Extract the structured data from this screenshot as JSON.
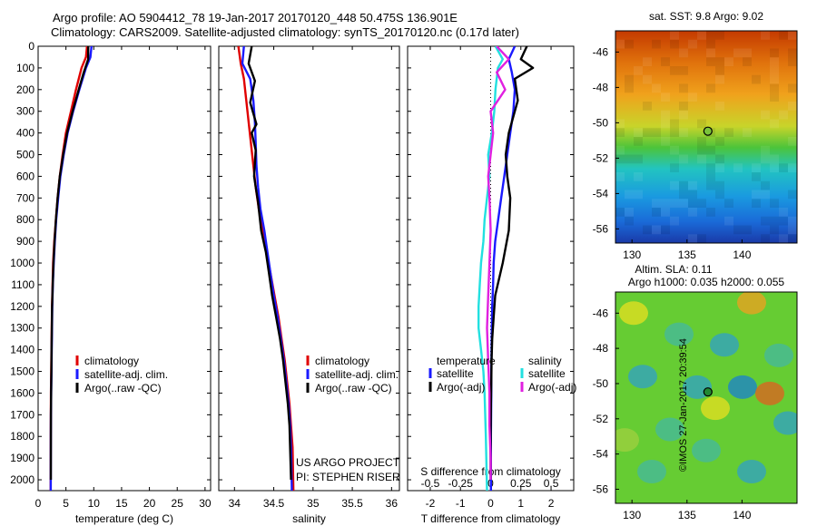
{
  "header": {
    "line1": "Argo profile: AO 5904412_78 19-Jan-2017 20170120_448 50.475S 136.901E",
    "line2": "Climatology: CARS2009. Satellite-adjusted climatology: synTS_20170120.nc (0.17d later)"
  },
  "credit": "©IMOS 27-Jan-2017 20:39:54",
  "colors": {
    "red": "#e00000",
    "blue": "#1a1aff",
    "black": "#000000",
    "cyan": "#22e0e0",
    "magenta": "#e020e0"
  },
  "chart_data": [
    {
      "type": "line",
      "xlabel": "temperature (deg C)",
      "xlim": [
        0,
        31
      ],
      "xticks": [
        "0",
        "5",
        "10",
        "15",
        "20",
        "25",
        "30"
      ],
      "ylim": [
        0,
        2050
      ],
      "yticks": [
        "0",
        "100",
        "200",
        "300",
        "400",
        "500",
        "600",
        "700",
        "800",
        "900",
        "1000",
        "1100",
        "1200",
        "1300",
        "1400",
        "1500",
        "1600",
        "1700",
        "1800",
        "1900",
        "2000"
      ],
      "legend": [
        "climatology",
        "satellite-adj. clim.",
        "Argo(..raw -QC)"
      ],
      "series": [
        {
          "name": "climatology",
          "color": "red",
          "x": [
            8.8,
            8.6,
            7.8,
            6.8,
            5.9,
            5.0,
            4.4,
            3.9,
            3.5,
            3.2,
            2.9,
            2.7,
            2.6,
            2.5,
            2.45,
            2.4,
            2.35,
            2.3,
            2.28,
            2.26,
            2.25
          ],
          "y": [
            0,
            50,
            100,
            200,
            300,
            400,
            500,
            600,
            700,
            800,
            900,
            1000,
            1100,
            1200,
            1300,
            1400,
            1500,
            1600,
            1700,
            1800,
            2050
          ]
        },
        {
          "name": "satellite-adj. clim.",
          "color": "blue",
          "x": [
            9.6,
            9.4,
            8.6,
            7.4,
            6.3,
            5.3,
            4.6,
            4.0,
            3.6,
            3.25,
            3.0,
            2.8,
            2.65,
            2.55,
            2.5,
            2.45,
            2.4,
            2.35,
            2.3,
            2.28,
            2.27
          ],
          "y": [
            0,
            50,
            100,
            200,
            300,
            400,
            500,
            600,
            700,
            800,
            900,
            1000,
            1100,
            1200,
            1300,
            1400,
            1500,
            1600,
            1700,
            1800,
            2050
          ]
        },
        {
          "name": "Argo(..raw -QC)",
          "color": "black",
          "x": [
            9.0,
            9.0,
            8.2,
            7.3,
            6.2,
            5.2,
            4.5,
            3.9,
            3.5,
            3.2,
            2.95,
            2.75,
            2.62,
            2.52,
            2.46,
            2.42,
            2.38,
            2.33,
            2.3,
            2.28
          ],
          "y": [
            0,
            60,
            120,
            200,
            300,
            400,
            500,
            600,
            700,
            800,
            900,
            1000,
            1100,
            1200,
            1300,
            1400,
            1500,
            1600,
            1700,
            2000
          ]
        }
      ],
      "annotations": []
    },
    {
      "type": "line",
      "xlabel": "salinity",
      "xlim": [
        33.8,
        36.1
      ],
      "xticks": [
        "34",
        "34.5",
        "35",
        "35.5",
        "36"
      ],
      "ylim": [
        0,
        2050
      ],
      "legend": [
        "climatology",
        "satellite-adj. clim.",
        "Argo(..raw -QC)"
      ],
      "series": [
        {
          "name": "climatology",
          "color": "red",
          "x": [
            34.05,
            34.08,
            34.12,
            34.15,
            34.18,
            34.21,
            34.24,
            34.27,
            34.31,
            34.36,
            34.41,
            34.46,
            34.51,
            34.56,
            34.6,
            34.64,
            34.67,
            34.7,
            34.72,
            34.74,
            34.75
          ],
          "y": [
            0,
            80,
            150,
            250,
            350,
            450,
            550,
            650,
            750,
            850,
            950,
            1050,
            1150,
            1250,
            1350,
            1450,
            1550,
            1650,
            1750,
            1850,
            2050
          ]
        },
        {
          "name": "satellite-adj. clim.",
          "color": "blue",
          "x": [
            34.12,
            34.1,
            34.2,
            34.24,
            34.26,
            34.27,
            34.28,
            34.3,
            34.33,
            34.38,
            34.42,
            34.46,
            34.5,
            34.55,
            34.59,
            34.63,
            34.66,
            34.69,
            34.71,
            34.72,
            34.73
          ],
          "y": [
            0,
            80,
            150,
            250,
            350,
            450,
            550,
            650,
            750,
            850,
            950,
            1050,
            1150,
            1250,
            1350,
            1450,
            1550,
            1650,
            1750,
            1850,
            2050
          ]
        },
        {
          "name": "Argo(..raw -QC)",
          "color": "black",
          "x": [
            34.22,
            34.18,
            34.26,
            34.2,
            34.28,
            34.22,
            34.27,
            34.25,
            34.3,
            34.34,
            34.4,
            34.44,
            34.48,
            34.53,
            34.58,
            34.62,
            34.65,
            34.68,
            34.7,
            34.72
          ],
          "y": [
            0,
            80,
            160,
            260,
            360,
            400,
            480,
            600,
            720,
            850,
            950,
            1050,
            1150,
            1250,
            1350,
            1450,
            1550,
            1650,
            1750,
            2000
          ]
        }
      ],
      "annotations": [
        "US ARGO PROJECT",
        "PI: STEPHEN RISER"
      ]
    },
    {
      "type": "line",
      "xlabel": "T difference from climatology",
      "xlabel_top": "S difference from climatology",
      "xlim": [
        -2.75,
        2.75
      ],
      "xticks": [
        "-2",
        "-1",
        "0",
        "1",
        "2"
      ],
      "xticks_top": [
        "-0.5",
        "-0.25",
        "0",
        "0.25",
        "0.5"
      ],
      "ylim": [
        0,
        2050
      ],
      "legend_titles": [
        "temperature",
        "salinity"
      ],
      "legend": [
        "satellite",
        "Argo(-adj)",
        "satellite",
        "Argo(-adj)"
      ],
      "series": [
        {
          "name": "satellite",
          "group": "temperature",
          "color": "blue",
          "x": [
            0.8,
            0.6,
            0.7,
            0.8,
            0.75,
            0.65,
            0.55,
            0.45,
            0.35,
            0.25,
            0.15,
            0.1,
            0.08,
            0.05,
            0.04,
            0.03,
            0.02,
            0.02,
            0.01,
            0.01
          ],
          "y": [
            0,
            60,
            120,
            200,
            300,
            400,
            500,
            600,
            700,
            800,
            900,
            1000,
            1100,
            1200,
            1300,
            1400,
            1500,
            1600,
            1800,
            2050
          ]
        },
        {
          "name": "Argo(-adj)",
          "group": "temperature",
          "color": "black",
          "x": [
            1.2,
            1.0,
            1.4,
            0.8,
            0.9,
            0.6,
            0.5,
            0.55,
            0.65,
            0.6,
            0.4,
            0.15,
            0.1,
            0.05,
            0.03,
            0.02,
            0.01,
            0.0,
            0.0
          ],
          "y": [
            0,
            60,
            100,
            150,
            250,
            400,
            500,
            600,
            700,
            850,
            1000,
            1150,
            1250,
            1350,
            1450,
            1550,
            1650,
            1800,
            2000
          ]
        },
        {
          "name": "satellite",
          "group": "salinity",
          "color": "cyan",
          "x": [
            0.04,
            0.1,
            0.06,
            0.04,
            0.03,
            0.01,
            -0.02,
            -0.01,
            -0.03,
            -0.05,
            -0.06,
            -0.08,
            -0.09,
            -0.1,
            -0.1,
            -0.08,
            -0.06,
            -0.05,
            -0.04,
            -0.03
          ],
          "y": [
            0,
            60,
            100,
            200,
            300,
            400,
            500,
            600,
            700,
            800,
            900,
            1000,
            1100,
            1200,
            1300,
            1400,
            1500,
            1600,
            1800,
            2050
          ]
        },
        {
          "name": "Argo(-adj)",
          "group": "salinity",
          "color": "magenta",
          "x": [
            0.05,
            0.15,
            0.05,
            0.12,
            0.0,
            0.02,
            0.0,
            -0.02,
            -0.01,
            0.0,
            -0.01,
            -0.02,
            -0.03,
            -0.02,
            -0.01,
            -0.01,
            0.0,
            0.0
          ],
          "y": [
            0,
            60,
            120,
            200,
            300,
            400,
            500,
            600,
            700,
            850,
            1000,
            1150,
            1300,
            1450,
            1600,
            1750,
            1900,
            2000
          ]
        }
      ],
      "annotations": []
    },
    {
      "type": "heatmap",
      "title": "sat. SST: 9.8 Argo: 9.02",
      "xticks": [
        "130",
        "135",
        "140"
      ],
      "yticks": [
        "-46",
        "-48",
        "-50",
        "-52",
        "-54",
        "-56"
      ],
      "xlim": [
        128.5,
        145
      ],
      "ylim": [
        -56.8,
        -44.8
      ],
      "marker": {
        "lon": 136.9,
        "lat": -50.475
      }
    },
    {
      "type": "heatmap",
      "title_lines": [
        "Altim. SLA: 0.11",
        "Argo h1000: 0.035 h2000: 0.055"
      ],
      "xticks": [
        "130",
        "135",
        "140"
      ],
      "yticks": [
        "-46",
        "-48",
        "-50",
        "-52",
        "-54",
        "-56"
      ],
      "xlim": [
        128.5,
        145
      ],
      "ylim": [
        -56.8,
        -44.8
      ],
      "marker": {
        "lon": 136.9,
        "lat": -50.475
      }
    }
  ]
}
